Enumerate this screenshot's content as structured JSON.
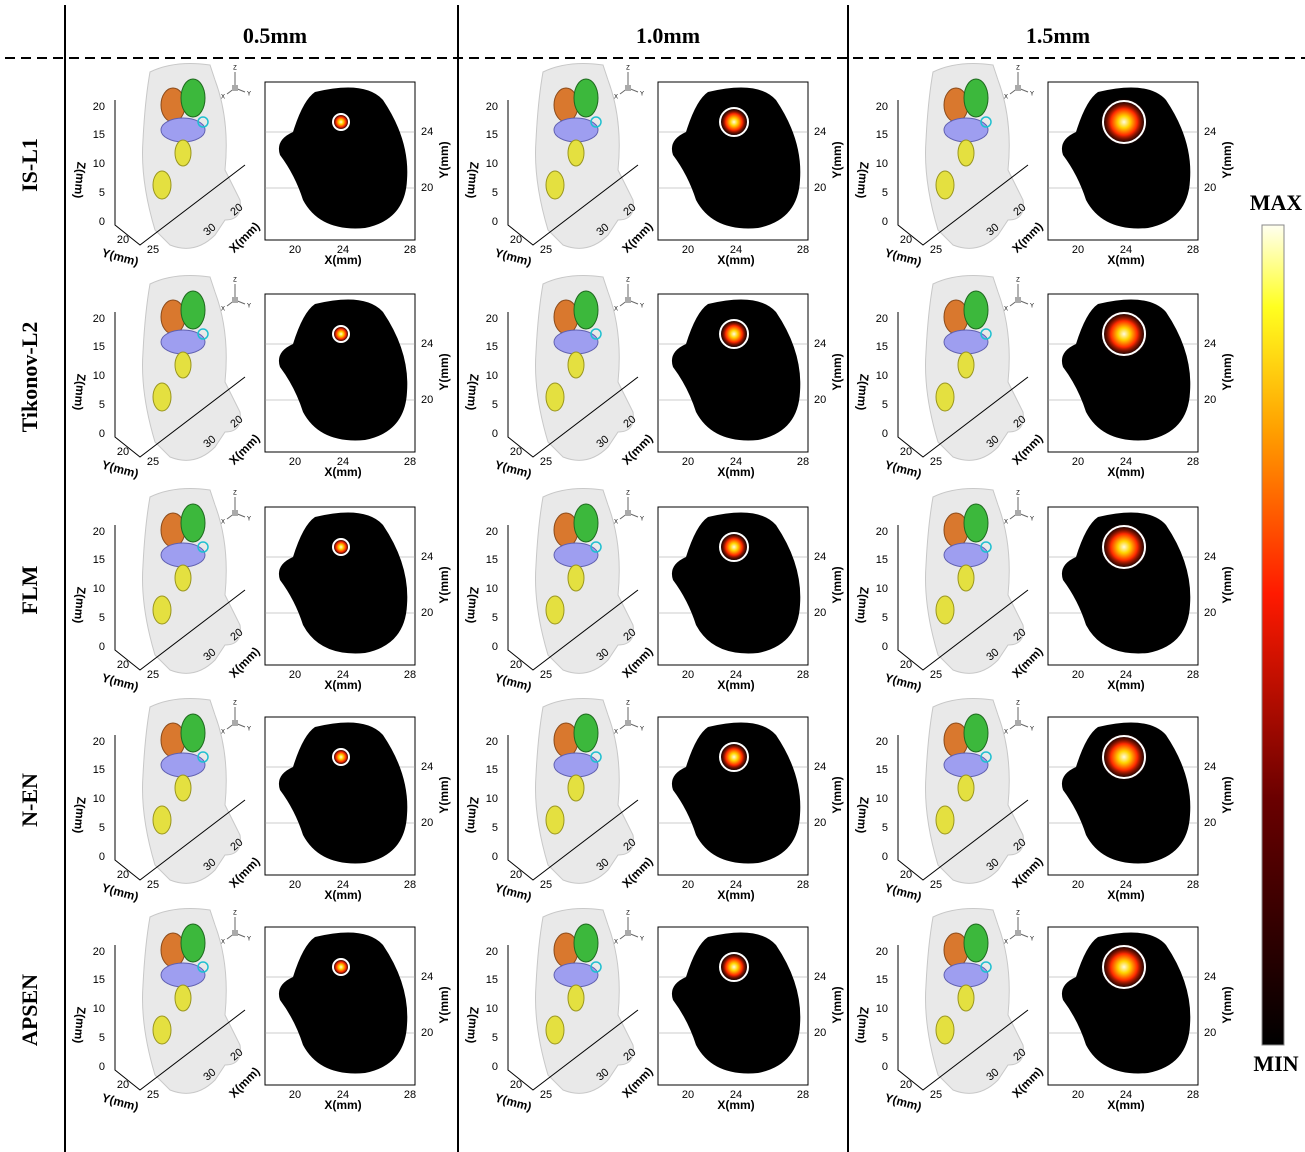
{
  "columns": [
    "0.5mm",
    "1.0mm",
    "1.5mm"
  ],
  "rows": [
    "IS-L1",
    "Tikonov-L2",
    "FLM",
    "N-EN",
    "APSEN"
  ],
  "volume_plot": {
    "z_label": "Z(mm)",
    "y_label": "Y(mm)",
    "x_label": "X(mm)",
    "z_ticks": [
      "0",
      "5",
      "10",
      "15",
      "20"
    ],
    "y_ticks": [
      "20",
      "25"
    ],
    "x_ticks": [
      "20",
      "30"
    ],
    "triad": [
      "Z",
      "X",
      "Y"
    ]
  },
  "slice_plot": {
    "x_label": "X(mm)",
    "y_label": "Y(mm)",
    "x_ticks": [
      "20",
      "24",
      "28"
    ],
    "y_ticks": [
      "20",
      "24"
    ]
  },
  "colorbar": {
    "max": "MAX",
    "min": "MIN"
  }
}
